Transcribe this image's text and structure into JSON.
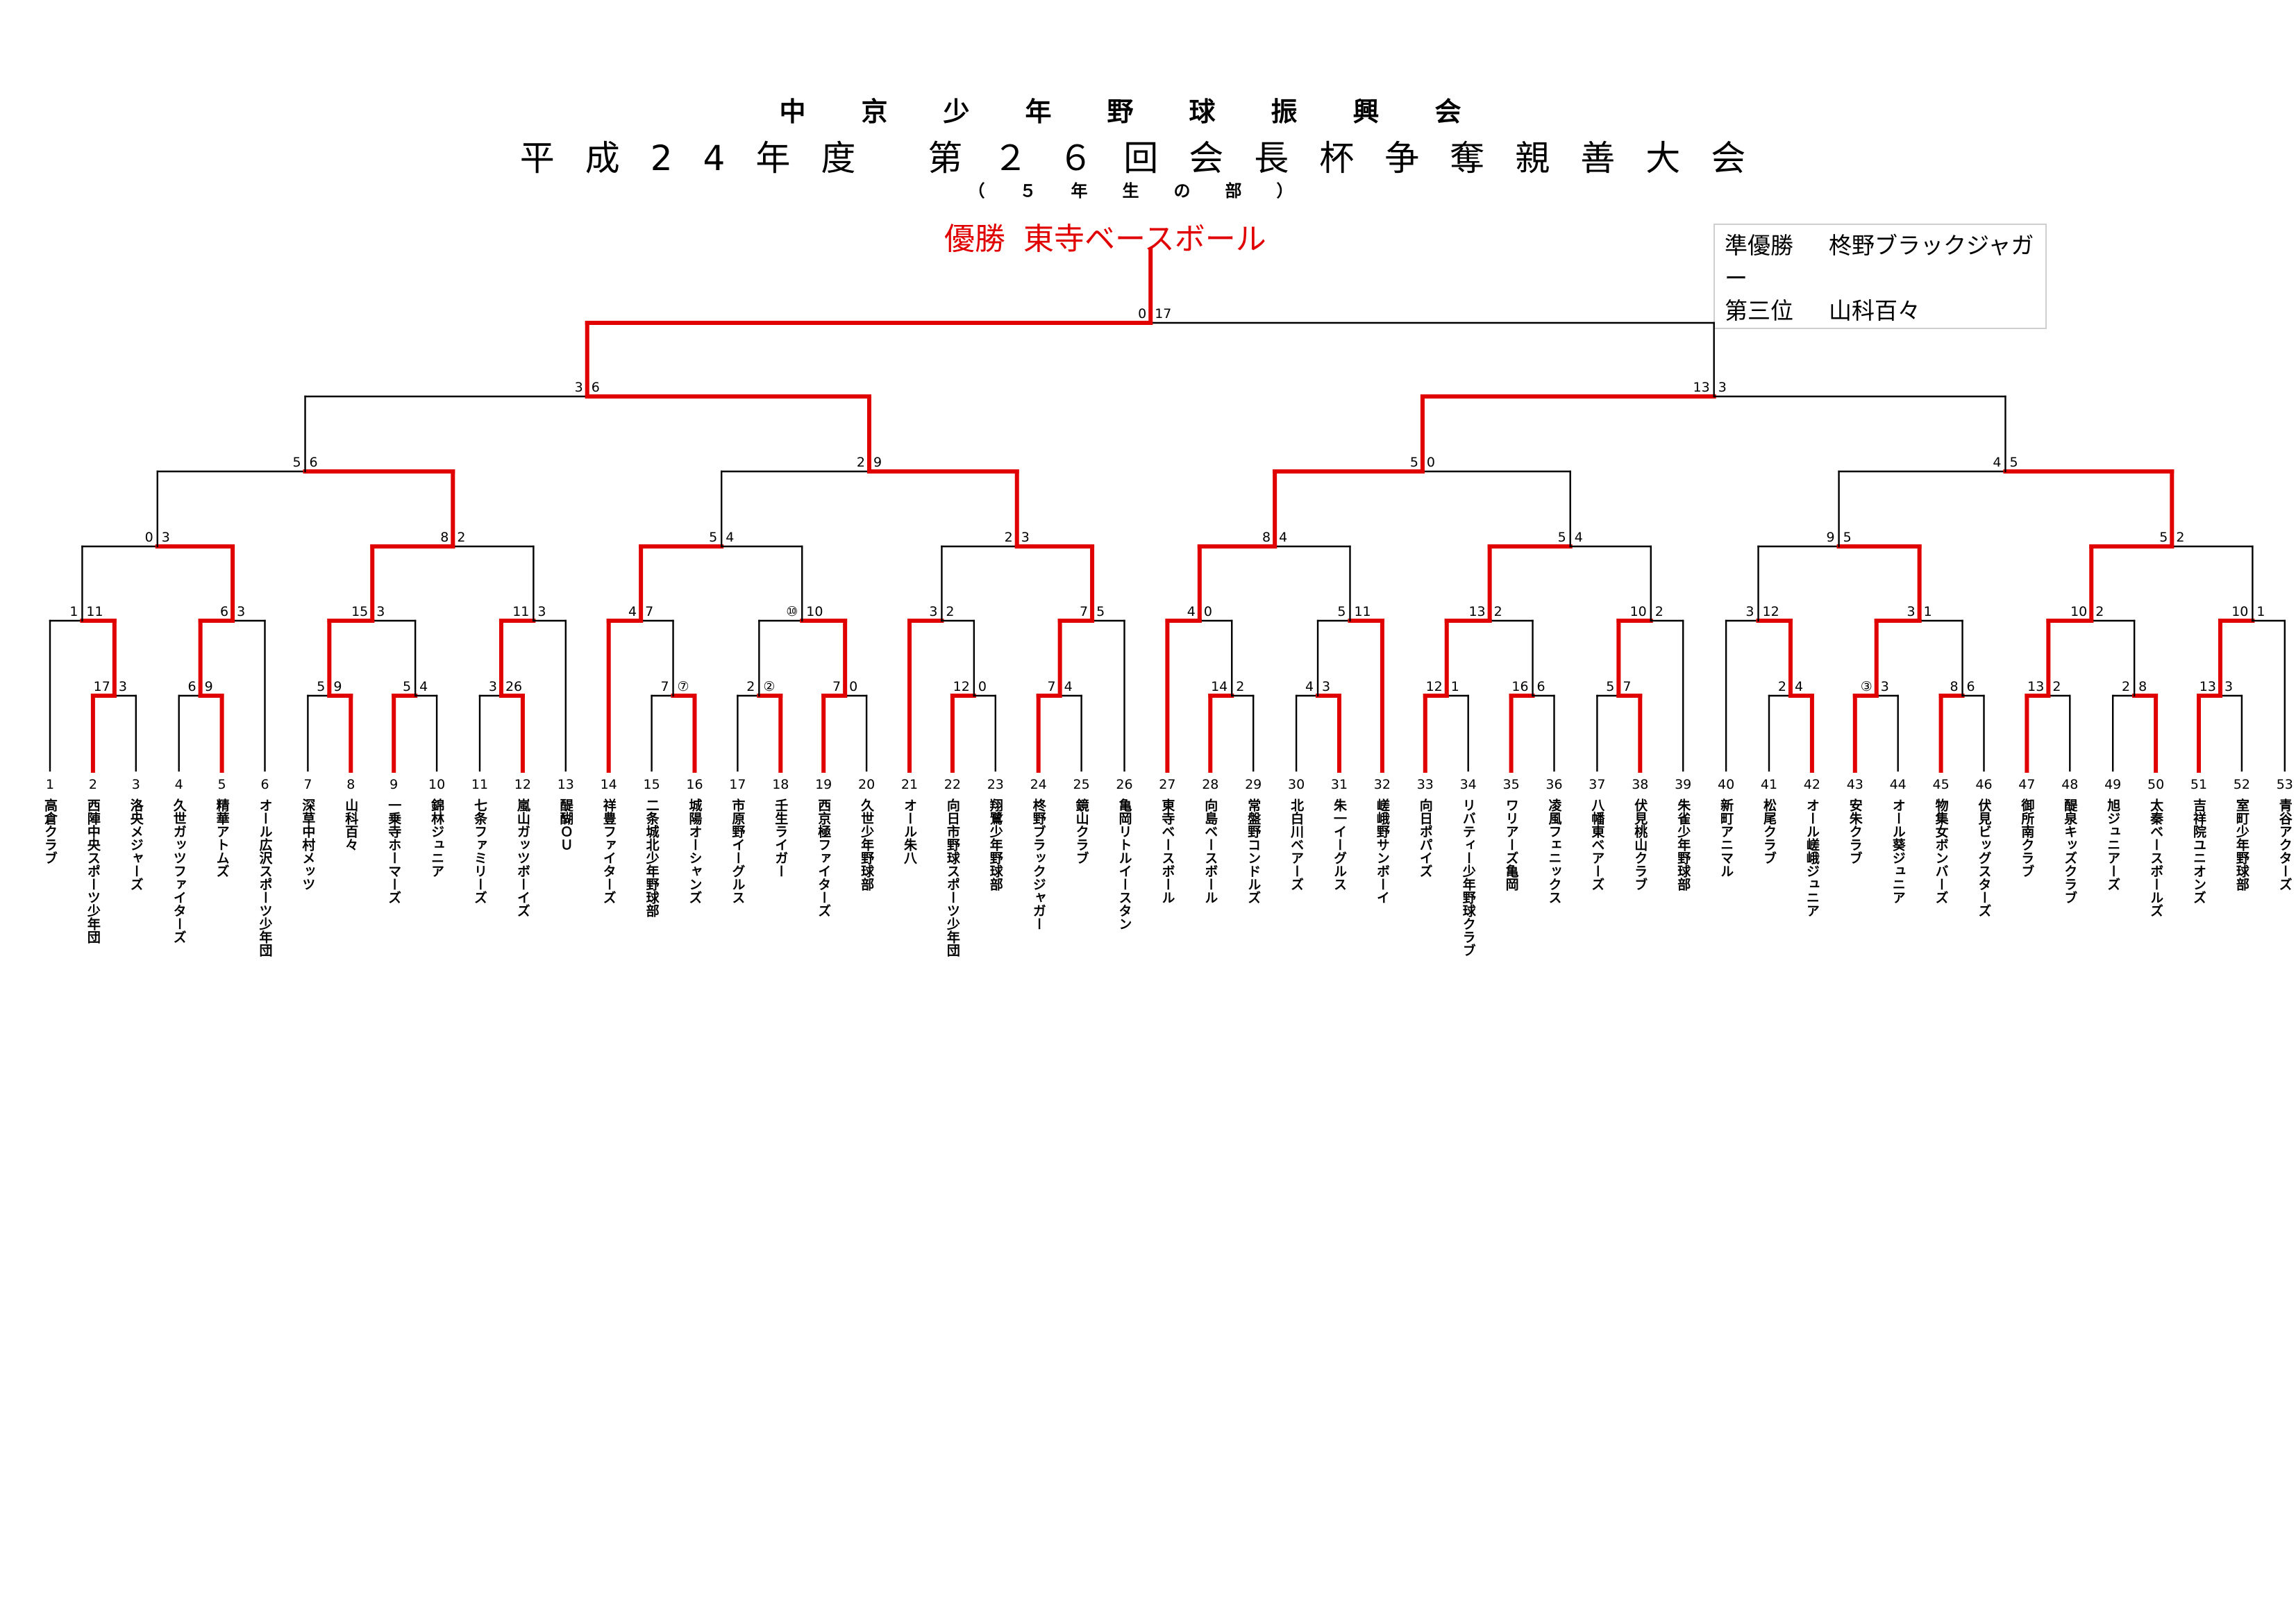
{
  "header": {
    "association": "中京少年野球振興会",
    "tournament": "平成24年度 第２６回会長杯争奪親善大会",
    "division": "（５年生の部）"
  },
  "winner": {
    "label": "優勝",
    "team": "東寺ベースボール"
  },
  "results": [
    {
      "label": "準優勝",
      "team": "柊野ブラックジャガー"
    },
    {
      "label": "第三位",
      "team": "山科百々"
    }
  ],
  "colors": {
    "winner_path": "#e00000",
    "line": "#000000",
    "box_border": "#cfcfcf"
  },
  "teams": [
    {
      "no": "1",
      "name": "高倉クラブ"
    },
    {
      "no": "2",
      "name": "西陣中央スポーツ少年団"
    },
    {
      "no": "3",
      "name": "洛央メジャーズ"
    },
    {
      "no": "4",
      "name": "久世ガッツファイターズ"
    },
    {
      "no": "5",
      "name": "精華アトムズ"
    },
    {
      "no": "6",
      "name": "オール広沢スポーツ少年団"
    },
    {
      "no": "7",
      "name": "深草中村メッツ"
    },
    {
      "no": "8",
      "name": "山科百々"
    },
    {
      "no": "9",
      "name": "一乗寺ホーマーズ"
    },
    {
      "no": "10",
      "name": "錦林ジュニア"
    },
    {
      "no": "11",
      "name": "七条ファミリーズ"
    },
    {
      "no": "12",
      "name": "嵐山ガッツボーイズ"
    },
    {
      "no": "13",
      "name": "醍醐ＯＵ"
    },
    {
      "no": "14",
      "name": "祥豊ファイターズ"
    },
    {
      "no": "15",
      "name": "二条城北少年野球部"
    },
    {
      "no": "16",
      "name": "城陽オーシャンズ"
    },
    {
      "no": "17",
      "name": "市原野イーグルス"
    },
    {
      "no": "18",
      "name": "壬生ライガー"
    },
    {
      "no": "19",
      "name": "西京極ファイターズ"
    },
    {
      "no": "20",
      "name": "久世少年野球部"
    },
    {
      "no": "21",
      "name": "オール朱八"
    },
    {
      "no": "22",
      "name": "向日市野球スポーツ少年団"
    },
    {
      "no": "23",
      "name": "翔鷺少年野球部"
    },
    {
      "no": "24",
      "name": "柊野ブラックジャガー"
    },
    {
      "no": "25",
      "name": "鏡山クラブ"
    },
    {
      "no": "26",
      "name": "亀岡リトルイースタン"
    },
    {
      "no": "27",
      "name": "東寺ベースボール"
    },
    {
      "no": "28",
      "name": "向島ベースボール"
    },
    {
      "no": "29",
      "name": "常盤野コンドルズ"
    },
    {
      "no": "30",
      "name": "北白川ベアーズ"
    },
    {
      "no": "31",
      "name": "朱一イーグルス"
    },
    {
      "no": "32",
      "name": "嵯峨野サンボーイ"
    },
    {
      "no": "33",
      "name": "向日ポパイズ"
    },
    {
      "no": "34",
      "name": "リバティー少年野球クラブ"
    },
    {
      "no": "35",
      "name": "ワリアーズ亀岡"
    },
    {
      "no": "36",
      "name": "凌風フェニックス"
    },
    {
      "no": "37",
      "name": "八幡東ベアーズ"
    },
    {
      "no": "38",
      "name": "伏見桃山クラブ"
    },
    {
      "no": "39",
      "name": "朱雀少年野球部"
    },
    {
      "no": "40",
      "name": "新町アニマル"
    },
    {
      "no": "41",
      "name": "松尾クラブ"
    },
    {
      "no": "42",
      "name": "オール嵯峨ジュニア"
    },
    {
      "no": "43",
      "name": "安朱クラブ"
    },
    {
      "no": "44",
      "name": "オール葵ジュニア"
    },
    {
      "no": "45",
      "name": "物集女ボンバーズ"
    },
    {
      "no": "46",
      "name": "伏見ビッグスターズ"
    },
    {
      "no": "47",
      "name": "御所南クラブ"
    },
    {
      "no": "48",
      "name": "醍泉キッズクラブ"
    },
    {
      "no": "49",
      "name": "旭ジュニアーズ"
    },
    {
      "no": "50",
      "name": "太秦ベースボールズ"
    },
    {
      "no": "51",
      "name": "吉祥院ユニオンズ"
    },
    {
      "no": "52",
      "name": "室町少年野球部"
    },
    {
      "no": "53",
      "name": "青谷アクターズ"
    }
  ],
  "matches": {
    "m1": [
      "17",
      "3"
    ],
    "m2": [
      "6",
      "9"
    ],
    "m3": [
      "5",
      "9"
    ],
    "m4": [
      "5",
      "4"
    ],
    "m5": [
      "3",
      "26"
    ],
    "m6": [
      "7",
      "⑦"
    ],
    "m7": [
      "2",
      "②"
    ],
    "m8": [
      "7",
      "0"
    ],
    "m9": [
      "12",
      "0"
    ],
    "m10": [
      "7",
      "4"
    ],
    "m11": [
      "14",
      "2"
    ],
    "m12": [
      "4",
      "3"
    ],
    "m13": [
      "12",
      "1"
    ],
    "m14": [
      "16",
      "6"
    ],
    "m15": [
      "5",
      "7"
    ],
    "m16": [
      "2",
      "4"
    ],
    "m17": [
      "③",
      "3"
    ],
    "m18": [
      "8",
      "6"
    ],
    "m19": [
      "13",
      "2"
    ],
    "m20": [
      "2",
      "8"
    ],
    "m21": [
      "13",
      "3"
    ],
    "m22": [
      "1",
      "11"
    ],
    "m23": [
      "6",
      "3"
    ],
    "m24": [
      "15",
      "3"
    ],
    "m25": [
      "11",
      "3"
    ],
    "m26": [
      "4",
      "7"
    ],
    "m27": [
      "⑩",
      "10"
    ],
    "m28": [
      "3",
      "2"
    ],
    "m29": [
      "7",
      "5"
    ],
    "m30": [
      "4",
      "0"
    ],
    "m31": [
      "5",
      "11"
    ],
    "m32": [
      "13",
      "2"
    ],
    "m33": [
      "10",
      "2"
    ],
    "m34": [
      "3",
      "12"
    ],
    "m35": [
      "3",
      "1"
    ],
    "m36": [
      "10",
      "2"
    ],
    "m37": [
      "10",
      "1"
    ],
    "m38": [
      "0",
      "3"
    ],
    "m39": [
      "8",
      "2"
    ],
    "m40": [
      "5",
      "4"
    ],
    "m41": [
      "2",
      "3"
    ],
    "m42": [
      "8",
      "4"
    ],
    "m43": [
      "5",
      "4"
    ],
    "m44": [
      "9",
      "5"
    ],
    "m45": [
      "5",
      "2"
    ],
    "m46": [
      "5",
      "6"
    ],
    "m47": [
      "2",
      "9"
    ],
    "m48": [
      "5",
      "0"
    ],
    "m49": [
      "4",
      "5"
    ],
    "m50": [
      "3",
      "6"
    ],
    "m51": [
      "13",
      "3"
    ],
    "m52": [
      "0",
      "17"
    ]
  }
}
